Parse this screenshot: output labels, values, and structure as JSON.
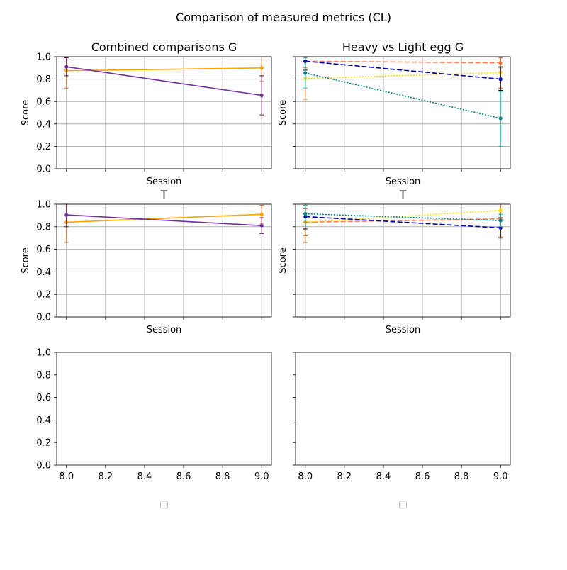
{
  "figure": {
    "suptitle": "Comparison of measured metrics (CL)"
  },
  "chart_data": [
    {
      "type": "line",
      "title": "Combined comparisons G",
      "xlabel": "Session",
      "ylabel": "Score",
      "xlim": [
        7.95,
        9.05
      ],
      "ylim": [
        0,
        1
      ],
      "yticks": [
        "0.0",
        "0.2",
        "0.4",
        "0.6",
        "0.8",
        "1.0"
      ],
      "xticks": [],
      "grid": true,
      "series": [
        {
          "color": "#ffa500",
          "dash": "solid",
          "errcolor": "#d2691e",
          "points": [
            {
              "x": 8,
              "y": 0.875,
              "lo": 0.72,
              "hi": 0.99
            },
            {
              "x": 9,
              "y": 0.9,
              "lo": 0.78,
              "hi": 1.0
            }
          ]
        },
        {
          "color": "#7030a0",
          "dash": "solid",
          "errcolor": "#5a0a5a",
          "points": [
            {
              "x": 8,
              "y": 0.91,
              "lo": 0.83,
              "hi": 0.99
            },
            {
              "x": 9,
              "y": 0.655,
              "lo": 0.48,
              "hi": 0.83
            }
          ]
        }
      ]
    },
    {
      "type": "line",
      "title": "Heavy vs Light egg G",
      "xlabel": "Session",
      "ylabel": "Score",
      "xlim": [
        7.95,
        9.05
      ],
      "ylim": [
        0,
        1
      ],
      "yticks": [],
      "xticks": [],
      "grid": true,
      "series": [
        {
          "color": "#ff7f50",
          "dash": "dashed",
          "errcolor": "#d2691e",
          "points": [
            {
              "x": 8,
              "y": 0.96,
              "lo": 0.9,
              "hi": 1.0
            },
            {
              "x": 9,
              "y": 0.945,
              "lo": 0.9,
              "hi": 0.99
            }
          ]
        },
        {
          "color": "#ffd700",
          "dash": "dotted",
          "errcolor": "#d2691e",
          "points": [
            {
              "x": 8,
              "y": 0.805,
              "lo": 0.62,
              "hi": 0.99
            },
            {
              "x": 9,
              "y": 0.86,
              "lo": 0.72,
              "hi": 1.0
            }
          ]
        },
        {
          "color": "#0000aa",
          "dash": "dashed",
          "errcolor": "#000000",
          "points": [
            {
              "x": 8,
              "y": 0.96,
              "lo": 0.88,
              "hi": 1.0
            },
            {
              "x": 9,
              "y": 0.8,
              "lo": 0.7,
              "hi": 0.91
            }
          ]
        },
        {
          "color": "#008080",
          "dash": "dotted",
          "errcolor": "#20b2aa",
          "points": [
            {
              "x": 8,
              "y": 0.855,
              "lo": 0.72,
              "hi": 0.99
            },
            {
              "x": 9,
              "y": 0.45,
              "lo": 0.2,
              "hi": 0.69
            }
          ]
        }
      ]
    },
    {
      "type": "line",
      "title": "T",
      "xlabel": "Session",
      "ylabel": "Score",
      "xlim": [
        7.95,
        9.05
      ],
      "ylim": [
        0,
        1
      ],
      "yticks": [
        "0.0",
        "0.2",
        "0.4",
        "0.6",
        "0.8",
        "1.0"
      ],
      "xticks": [],
      "grid": true,
      "series": [
        {
          "color": "#ffa500",
          "dash": "solid",
          "errcolor": "#d2691e",
          "points": [
            {
              "x": 8,
              "y": 0.84,
              "lo": 0.66,
              "hi": 1.0
            },
            {
              "x": 9,
              "y": 0.91,
              "lo": 0.83,
              "hi": 0.99
            }
          ]
        },
        {
          "color": "#7030a0",
          "dash": "solid",
          "errcolor": "#5a0a5a",
          "points": [
            {
              "x": 8,
              "y": 0.905,
              "lo": 0.8,
              "hi": 1.0
            },
            {
              "x": 9,
              "y": 0.81,
              "lo": 0.74,
              "hi": 0.88
            }
          ]
        }
      ]
    },
    {
      "type": "line",
      "title": "T",
      "xlabel": "Session",
      "ylabel": "Score",
      "xlim": [
        7.95,
        9.05
      ],
      "ylim": [
        0,
        1
      ],
      "yticks": [],
      "xticks": [],
      "grid": true,
      "series": [
        {
          "color": "#ff7f50",
          "dash": "dashed",
          "errcolor": "#d2691e",
          "points": [
            {
              "x": 8,
              "y": 0.84,
              "lo": 0.66,
              "hi": 1.0
            },
            {
              "x": 9,
              "y": 0.87,
              "lo": 0.71,
              "hi": 1.0
            }
          ]
        },
        {
          "color": "#ffd700",
          "dash": "dotted",
          "errcolor": "#d2691e",
          "points": [
            {
              "x": 8,
              "y": 0.84,
              "lo": 0.72,
              "hi": 0.96
            },
            {
              "x": 9,
              "y": 0.945,
              "lo": 0.88,
              "hi": 1.0
            }
          ]
        },
        {
          "color": "#0000aa",
          "dash": "dashed",
          "errcolor": "#000000",
          "points": [
            {
              "x": 8,
              "y": 0.89,
              "lo": 0.78,
              "hi": 1.0
            },
            {
              "x": 9,
              "y": 0.79,
              "lo": 0.7,
              "hi": 0.88
            }
          ]
        },
        {
          "color": "#008080",
          "dash": "dotted",
          "errcolor": "#20b2aa",
          "points": [
            {
              "x": 8,
              "y": 0.915,
              "lo": 0.84,
              "hi": 0.99
            },
            {
              "x": 9,
              "y": 0.855,
              "lo": 0.8,
              "hi": 0.91
            }
          ]
        }
      ]
    },
    {
      "type": "line",
      "title": "",
      "xlabel": "",
      "ylabel": "",
      "xlim": [
        7.95,
        9.05
      ],
      "ylim": [
        0,
        1
      ],
      "yticks": [
        "0.0",
        "0.2",
        "0.4",
        "0.6",
        "0.8",
        "1.0"
      ],
      "xticks": [
        "8.0",
        "8.2",
        "8.4",
        "8.6",
        "8.8",
        "9.0"
      ],
      "grid": false,
      "legend": "empty, below plot",
      "series": []
    },
    {
      "type": "line",
      "title": "",
      "xlabel": "",
      "ylabel": "",
      "xlim": [
        7.95,
        9.05
      ],
      "ylim": [
        0,
        1
      ],
      "yticks": [],
      "xticks": [
        "8.0",
        "8.2",
        "8.4",
        "8.6",
        "8.8",
        "9.0"
      ],
      "grid": false,
      "legend": "empty, below plot",
      "series": []
    }
  ]
}
